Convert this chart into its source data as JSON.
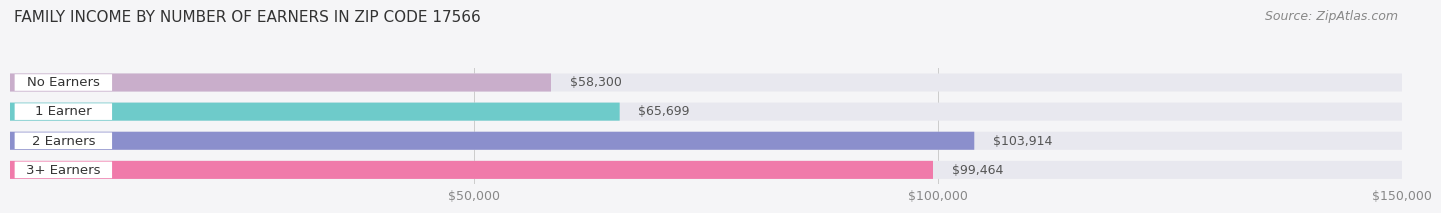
{
  "title": "FAMILY INCOME BY NUMBER OF EARNERS IN ZIP CODE 17566",
  "source": "Source: ZipAtlas.com",
  "categories": [
    "No Earners",
    "1 Earner",
    "2 Earners",
    "3+ Earners"
  ],
  "values": [
    58300,
    65699,
    103914,
    99464
  ],
  "bar_colors": [
    "#c9aecb",
    "#6ecbca",
    "#8b8fcc",
    "#f07aaa"
  ],
  "bar_bg_color": "#e8e8ef",
  "xlim": [
    0,
    150000
  ],
  "xticks": [
    50000,
    100000,
    150000
  ],
  "xtick_labels": [
    "$50,000",
    "$100,000",
    "$150,000"
  ],
  "value_labels": [
    "$58,300",
    "$65,699",
    "$103,914",
    "$99,464"
  ],
  "bg_color": "#f5f5f7",
  "title_fontsize": 11,
  "source_fontsize": 9,
  "label_fontsize": 9.5,
  "value_fontsize": 9,
  "tick_fontsize": 9,
  "bar_height": 0.62
}
